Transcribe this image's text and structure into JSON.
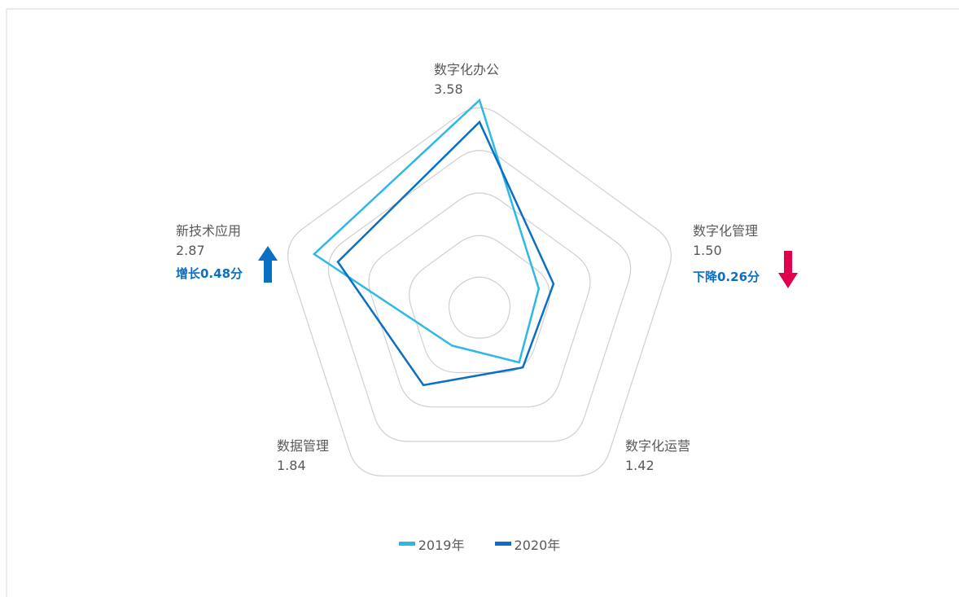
{
  "chart_data": {
    "type": "radar",
    "axes": [
      "数字化办公",
      "数字化管理",
      "数字化运营",
      "数据管理",
      "新技术应用"
    ],
    "rmax": 4,
    "ring_count": 5,
    "series": [
      {
        "name": "2019年",
        "color": "#2eb8e6",
        "values": [
          4.0,
          1.2,
          1.3,
          0.9,
          3.35
        ]
      },
      {
        "name": "2020年",
        "color": "#0b6fc4",
        "values": [
          3.58,
          1.5,
          1.42,
          1.84,
          2.87
        ]
      }
    ],
    "axis_values": [
      "3.58",
      "1.50",
      "1.42",
      "1.84",
      "2.87"
    ],
    "annotations": {
      "increase": {
        "text": "增长0.48分",
        "color": "#0b6fc4",
        "arrow": "up-arrow-icon"
      },
      "decrease": {
        "text": "下降0.26分",
        "color": "#e0004d",
        "arrow": "down-arrow-icon"
      }
    }
  }
}
